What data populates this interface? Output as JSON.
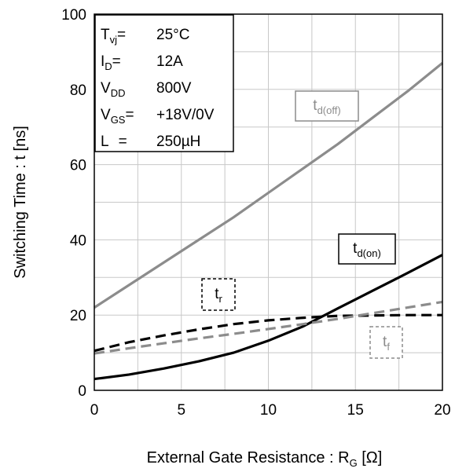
{
  "chart_data": {
    "type": "line",
    "xlabel": {
      "main": "External Gate Resistance : R",
      "sub": "G",
      "unit": " [Ω]"
    },
    "ylabel": "Switching Time : t [ns]",
    "xlim": [
      0,
      20
    ],
    "ylim": [
      0,
      100
    ],
    "xticks": [
      "0",
      "5",
      "10",
      "15",
      "20"
    ],
    "yticks": [
      "0",
      "20",
      "40",
      "60",
      "80",
      "100"
    ],
    "grid": true,
    "conditions": [
      {
        "name": "T",
        "sub": "vj",
        "eq": "=",
        "value": "25°C"
      },
      {
        "name": "I",
        "sub": "D",
        "eq": "=",
        "value": "12A"
      },
      {
        "name": "V",
        "sub": "DD",
        "eq": "",
        "value": "800V"
      },
      {
        "name": "V",
        "sub": "GS",
        "eq": "=",
        "value": "+18V/0V"
      },
      {
        "name": "L",
        "sub": "",
        "eq": "=",
        "value": "250µH"
      }
    ],
    "series": [
      {
        "name": "t",
        "sub": "d(off)",
        "color": "#8c8c8c",
        "dash": false,
        "x": [
          0,
          2,
          4,
          6,
          8,
          10,
          12,
          14,
          16,
          18,
          20
        ],
        "y": [
          22,
          28,
          34,
          40,
          46,
          52.5,
          59,
          65.5,
          72.5,
          79.5,
          87
        ]
      },
      {
        "name": "t",
        "sub": "d(on)",
        "color": "#000000",
        "dash": false,
        "x": [
          0,
          2,
          4,
          6,
          8,
          10,
          12,
          14,
          16,
          18,
          20
        ],
        "y": [
          3,
          4.2,
          5.8,
          7.7,
          10,
          13.2,
          17,
          21.8,
          26.5,
          31.2,
          36
        ]
      },
      {
        "name": "t",
        "sub": "r",
        "color": "#000000",
        "dash": true,
        "x": [
          0,
          2,
          4,
          6,
          8,
          10,
          12,
          14,
          16,
          18,
          20
        ],
        "y": [
          10.5,
          12.8,
          14.6,
          16.2,
          17.6,
          18.6,
          19.3,
          19.8,
          19.9,
          20,
          20
        ]
      },
      {
        "name": "t",
        "sub": "f",
        "color": "#8c8c8c",
        "dash": true,
        "x": [
          0,
          2,
          4,
          6,
          8,
          10,
          12,
          14,
          16,
          18,
          20
        ],
        "y": [
          9.8,
          11.2,
          12.5,
          13.8,
          15,
          16.3,
          17.6,
          19,
          20.5,
          22,
          23.5
        ]
      }
    ]
  }
}
